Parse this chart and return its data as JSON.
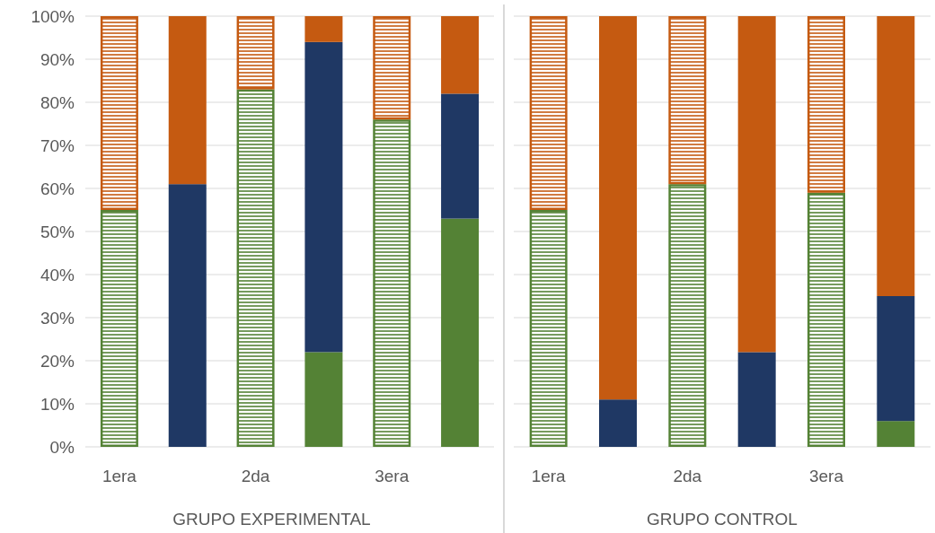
{
  "chart_data": [
    {
      "type": "bar",
      "stacked": true,
      "xlabel": "GRUPO EXPERIMENTAL",
      "categories": [
        "1era",
        null,
        "2da",
        null,
        "3era",
        null
      ],
      "ylim": [
        0,
        100
      ],
      "yticks": [
        {
          "value": 0,
          "label": "0%"
        },
        {
          "value": 10,
          "label": "10%"
        },
        {
          "value": 20,
          "label": "20%"
        },
        {
          "value": 30,
          "label": "30%"
        },
        {
          "value": 40,
          "label": "40%"
        },
        {
          "value": 50,
          "label": "50%"
        },
        {
          "value": 60,
          "label": "60%"
        },
        {
          "value": 70,
          "label": "70%"
        },
        {
          "value": 80,
          "label": "80%"
        },
        {
          "value": 90,
          "label": "90%"
        },
        {
          "value": 100,
          "label": "100%"
        }
      ],
      "grid": "y",
      "series": [
        {
          "color": "#548235",
          "values": [
            55,
            0,
            83,
            22,
            76,
            53
          ]
        },
        {
          "color": "#1f3864",
          "values": [
            0,
            61,
            0,
            72,
            0,
            29
          ]
        },
        {
          "color": "#c55a11",
          "values": [
            45,
            39,
            17,
            6,
            24,
            18
          ]
        }
      ]
    },
    {
      "type": "bar",
      "stacked": true,
      "xlabel": "GRUPO CONTROL",
      "categories": [
        "1era",
        null,
        "2da",
        null,
        "3era",
        null
      ],
      "ylim": [
        0,
        100
      ],
      "yticks": [
        0,
        10,
        20,
        30,
        40,
        50,
        60,
        70,
        80,
        90,
        100
      ],
      "grid": "y",
      "tick_labels": "x",
      "series": [
        {
          "color": "#548235",
          "values": [
            55,
            0,
            61,
            0,
            59,
            6
          ]
        },
        {
          "color": "#1f3864",
          "values": [
            0,
            11,
            0,
            22,
            0,
            29
          ]
        },
        {
          "color": "#c55a11",
          "values": [
            45,
            89,
            39,
            78,
            41,
            65
          ]
        }
      ]
    }
  ]
}
